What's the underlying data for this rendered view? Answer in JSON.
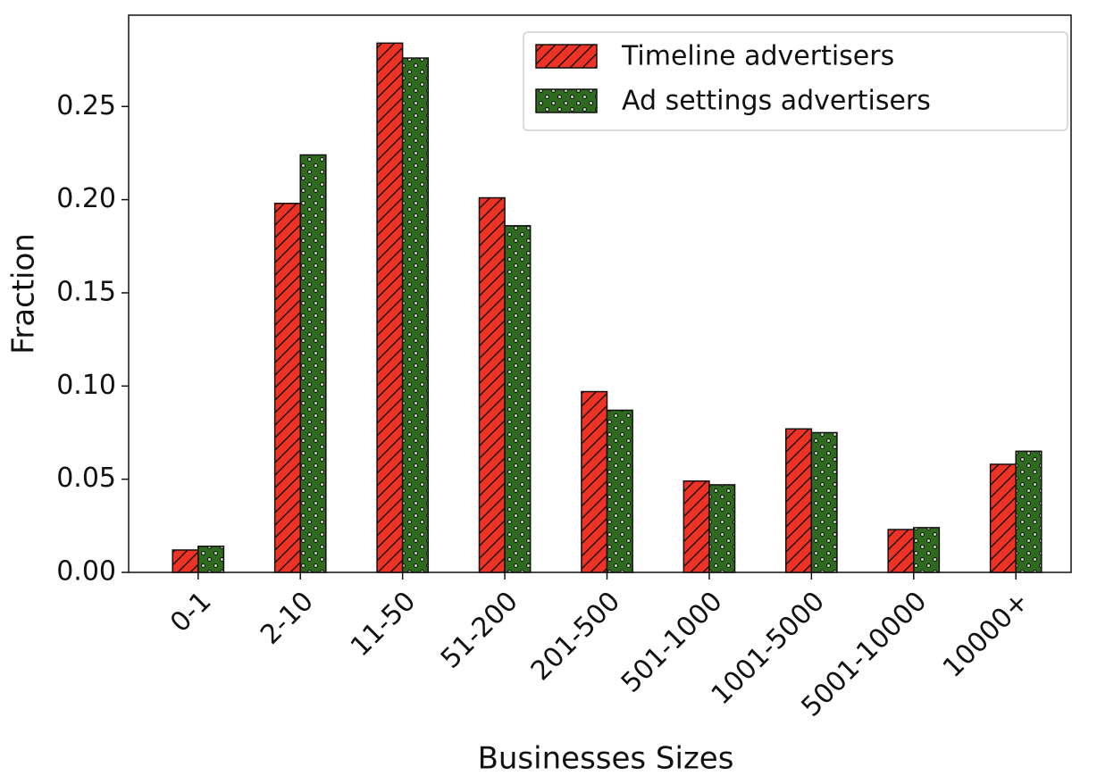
{
  "chart_data": {
    "type": "bar",
    "x_label": "Businesses Sizes",
    "y_label": "Fraction",
    "categories": [
      "0-1",
      "2-10",
      "11-50",
      "51-200",
      "201-500",
      "501-1000",
      "1001-5000",
      "5001-10000",
      "10000+"
    ],
    "series": [
      {
        "name": "Timeline advertisers",
        "color": "#ee3324",
        "hatch": "diagonal",
        "values": [
          0.012,
          0.198,
          0.284,
          0.201,
          0.097,
          0.049,
          0.077,
          0.023,
          0.058
        ]
      },
      {
        "name": "Ad settings advertisers",
        "color": "#2e6b1e",
        "hatch": "dots",
        "values": [
          0.014,
          0.224,
          0.276,
          0.186,
          0.087,
          0.047,
          0.075,
          0.024,
          0.065
        ]
      }
    ],
    "ylim": [
      0,
      0.299
    ],
    "yticks": [
      {
        "value": 0,
        "label": "0.00"
      },
      0.05,
      {
        "value": 0.1,
        "label": "0.10"
      },
      0.15,
      {
        "value": 0.2,
        "label": "0.20"
      },
      0.25
    ],
    "legend": "upper right",
    "grid": false
  }
}
